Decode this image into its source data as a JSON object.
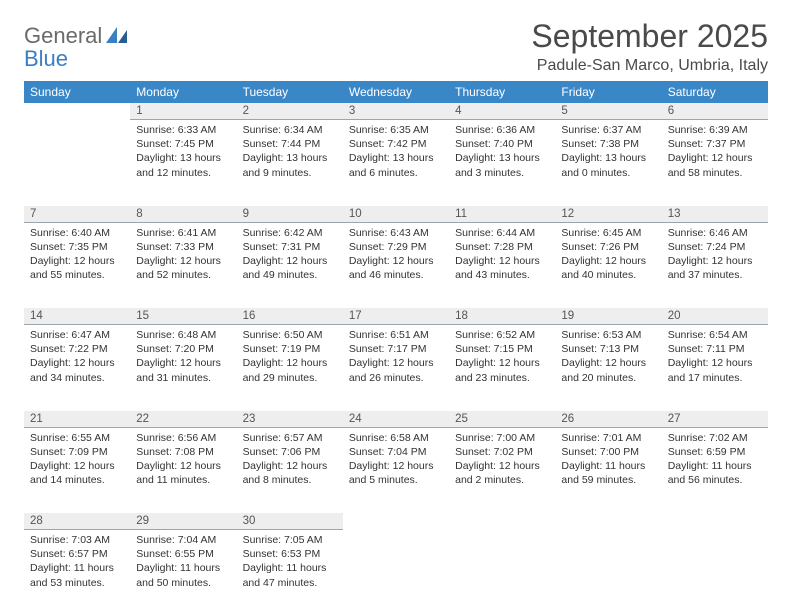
{
  "logo": {
    "line1": "General",
    "line2": "Blue"
  },
  "title": "September 2025",
  "location": "Padule-San Marco, Umbria, Italy",
  "colors": {
    "header_bg": "#3a87c8",
    "header_fg": "#ffffff",
    "daynum_bg": "#eeeeee",
    "daynum_border": "#9aa6af",
    "text": "#333333",
    "logo_gray": "#6a6a6a",
    "logo_blue": "#3a7fc4",
    "page_bg": "#ffffff"
  },
  "typography": {
    "title_fontsize": 32,
    "location_fontsize": 16,
    "th_fontsize": 12,
    "cell_fontsize": 10.5,
    "daynum_fontsize": 11.5
  },
  "weekdays": [
    "Sunday",
    "Monday",
    "Tuesday",
    "Wednesday",
    "Thursday",
    "Friday",
    "Saturday"
  ],
  "start_weekday_index": 1,
  "days": [
    {
      "n": 1,
      "sunrise": "6:33 AM",
      "sunset": "7:45 PM",
      "daylight": "13 hours and 12 minutes."
    },
    {
      "n": 2,
      "sunrise": "6:34 AM",
      "sunset": "7:44 PM",
      "daylight": "13 hours and 9 minutes."
    },
    {
      "n": 3,
      "sunrise": "6:35 AM",
      "sunset": "7:42 PM",
      "daylight": "13 hours and 6 minutes."
    },
    {
      "n": 4,
      "sunrise": "6:36 AM",
      "sunset": "7:40 PM",
      "daylight": "13 hours and 3 minutes."
    },
    {
      "n": 5,
      "sunrise": "6:37 AM",
      "sunset": "7:38 PM",
      "daylight": "13 hours and 0 minutes."
    },
    {
      "n": 6,
      "sunrise": "6:39 AM",
      "sunset": "7:37 PM",
      "daylight": "12 hours and 58 minutes."
    },
    {
      "n": 7,
      "sunrise": "6:40 AM",
      "sunset": "7:35 PM",
      "daylight": "12 hours and 55 minutes."
    },
    {
      "n": 8,
      "sunrise": "6:41 AM",
      "sunset": "7:33 PM",
      "daylight": "12 hours and 52 minutes."
    },
    {
      "n": 9,
      "sunrise": "6:42 AM",
      "sunset": "7:31 PM",
      "daylight": "12 hours and 49 minutes."
    },
    {
      "n": 10,
      "sunrise": "6:43 AM",
      "sunset": "7:29 PM",
      "daylight": "12 hours and 46 minutes."
    },
    {
      "n": 11,
      "sunrise": "6:44 AM",
      "sunset": "7:28 PM",
      "daylight": "12 hours and 43 minutes."
    },
    {
      "n": 12,
      "sunrise": "6:45 AM",
      "sunset": "7:26 PM",
      "daylight": "12 hours and 40 minutes."
    },
    {
      "n": 13,
      "sunrise": "6:46 AM",
      "sunset": "7:24 PM",
      "daylight": "12 hours and 37 minutes."
    },
    {
      "n": 14,
      "sunrise": "6:47 AM",
      "sunset": "7:22 PM",
      "daylight": "12 hours and 34 minutes."
    },
    {
      "n": 15,
      "sunrise": "6:48 AM",
      "sunset": "7:20 PM",
      "daylight": "12 hours and 31 minutes."
    },
    {
      "n": 16,
      "sunrise": "6:50 AM",
      "sunset": "7:19 PM",
      "daylight": "12 hours and 29 minutes."
    },
    {
      "n": 17,
      "sunrise": "6:51 AM",
      "sunset": "7:17 PM",
      "daylight": "12 hours and 26 minutes."
    },
    {
      "n": 18,
      "sunrise": "6:52 AM",
      "sunset": "7:15 PM",
      "daylight": "12 hours and 23 minutes."
    },
    {
      "n": 19,
      "sunrise": "6:53 AM",
      "sunset": "7:13 PM",
      "daylight": "12 hours and 20 minutes."
    },
    {
      "n": 20,
      "sunrise": "6:54 AM",
      "sunset": "7:11 PM",
      "daylight": "12 hours and 17 minutes."
    },
    {
      "n": 21,
      "sunrise": "6:55 AM",
      "sunset": "7:09 PM",
      "daylight": "12 hours and 14 minutes."
    },
    {
      "n": 22,
      "sunrise": "6:56 AM",
      "sunset": "7:08 PM",
      "daylight": "12 hours and 11 minutes."
    },
    {
      "n": 23,
      "sunrise": "6:57 AM",
      "sunset": "7:06 PM",
      "daylight": "12 hours and 8 minutes."
    },
    {
      "n": 24,
      "sunrise": "6:58 AM",
      "sunset": "7:04 PM",
      "daylight": "12 hours and 5 minutes."
    },
    {
      "n": 25,
      "sunrise": "7:00 AM",
      "sunset": "7:02 PM",
      "daylight": "12 hours and 2 minutes."
    },
    {
      "n": 26,
      "sunrise": "7:01 AM",
      "sunset": "7:00 PM",
      "daylight": "11 hours and 59 minutes."
    },
    {
      "n": 27,
      "sunrise": "7:02 AM",
      "sunset": "6:59 PM",
      "daylight": "11 hours and 56 minutes."
    },
    {
      "n": 28,
      "sunrise": "7:03 AM",
      "sunset": "6:57 PM",
      "daylight": "11 hours and 53 minutes."
    },
    {
      "n": 29,
      "sunrise": "7:04 AM",
      "sunset": "6:55 PM",
      "daylight": "11 hours and 50 minutes."
    },
    {
      "n": 30,
      "sunrise": "7:05 AM",
      "sunset": "6:53 PM",
      "daylight": "11 hours and 47 minutes."
    }
  ],
  "labels": {
    "sunrise": "Sunrise:",
    "sunset": "Sunset:",
    "daylight": "Daylight:"
  }
}
